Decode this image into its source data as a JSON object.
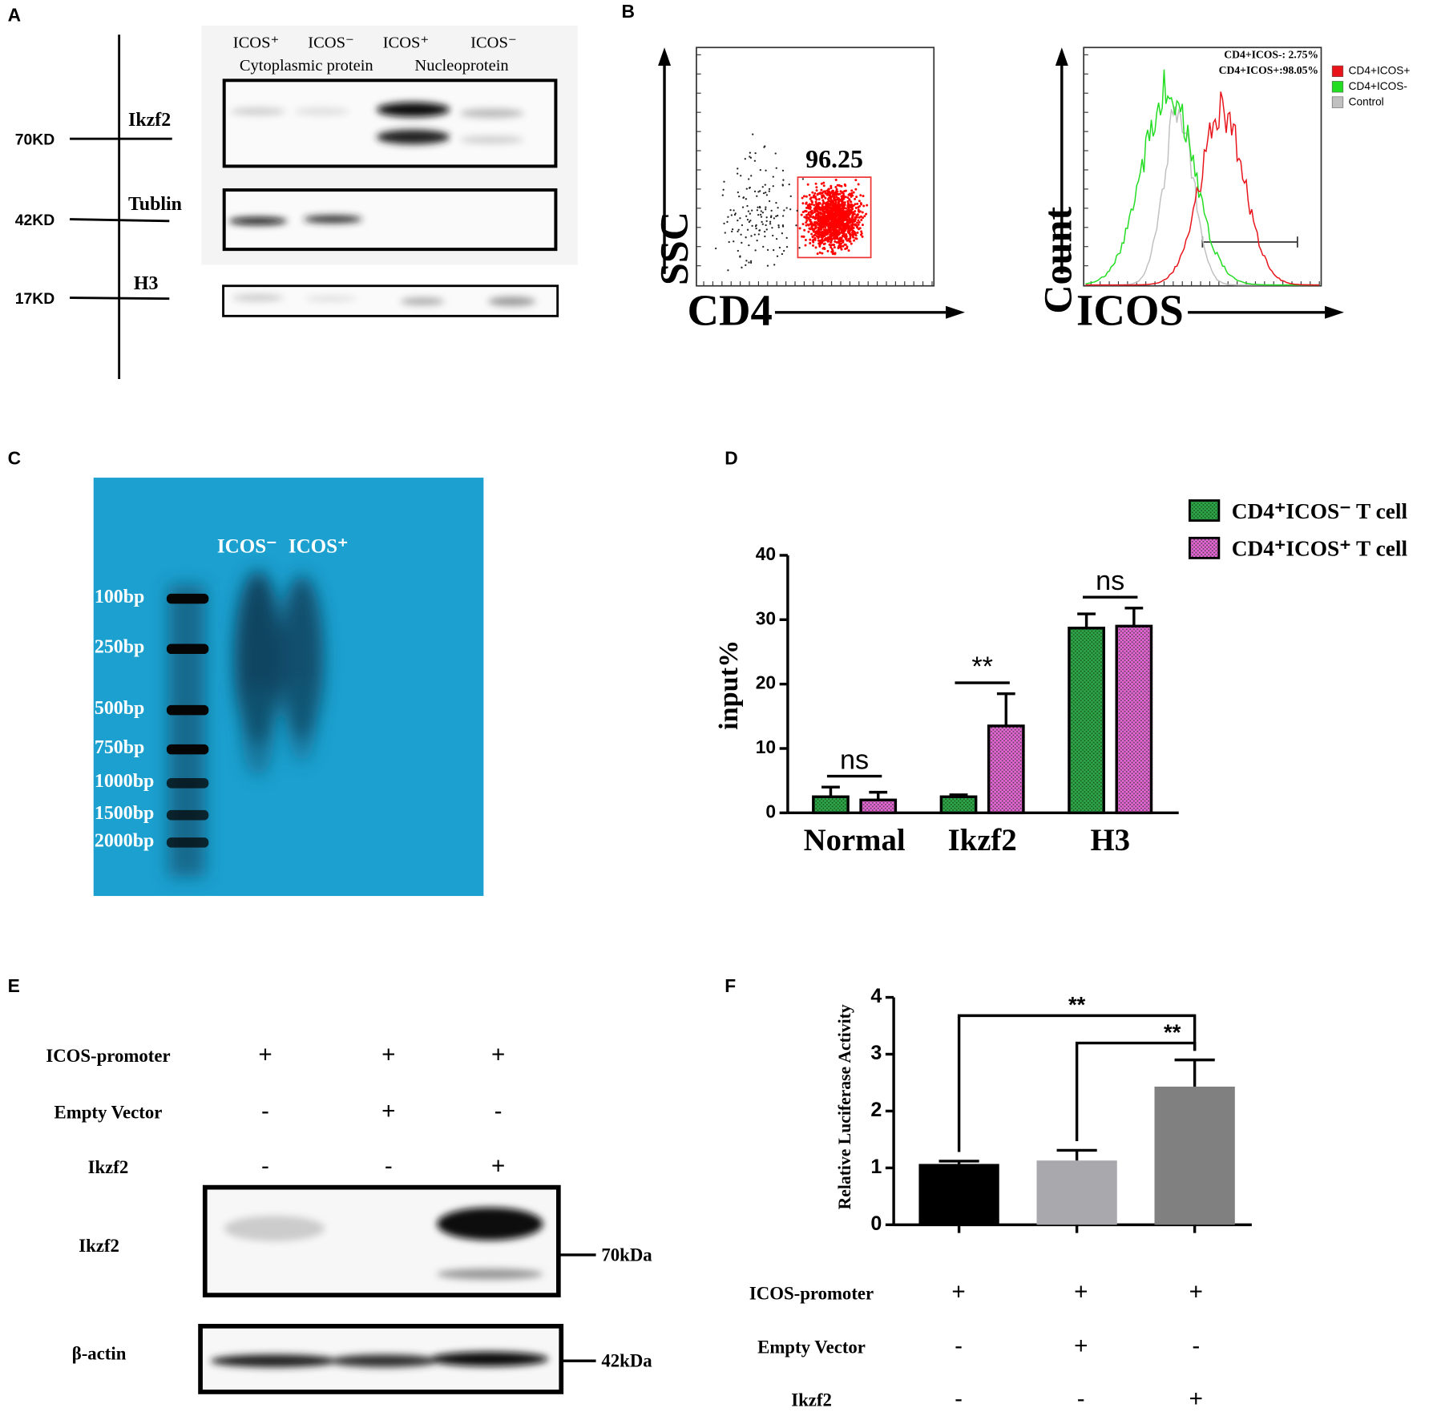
{
  "panel_letters": [
    "A",
    "B",
    "C",
    "D",
    "E",
    "F"
  ],
  "panel_a": {
    "lanes": [
      "ICOS⁺",
      "ICOS⁻",
      "ICOS⁺",
      "ICOS⁻"
    ],
    "fractions": [
      "Cytoplasmic protein",
      "Nucleoprotein"
    ],
    "markers": [
      "70KD",
      "42KD",
      "17KD"
    ],
    "proteins": [
      "Ikzf2",
      "Tublin",
      "H3"
    ]
  },
  "panel_b": {
    "scatter": {
      "gate_value": "96.25",
      "y_label": "SSC",
      "x_label": "CD4"
    },
    "histogram": {
      "y_label": "Count",
      "x_label": "ICOS",
      "stats": [
        "CD4+ICOS-: 2.75%",
        "CD4+ICOS+:98.05%"
      ],
      "legend": [
        {
          "name": "CD4+ICOS+",
          "color": "#e8141a"
        },
        {
          "name": "CD4+ICOS-",
          "color": "#22dd22"
        },
        {
          "name": "Control",
          "color": "#c0c0c0"
        }
      ]
    }
  },
  "panel_c": {
    "lanes": [
      "ICOS⁻",
      "ICOS⁺"
    ],
    "ladder": [
      "100bp",
      "250bp",
      "500bp",
      "750bp",
      "1000bp",
      "1500bp",
      "2000bp"
    ]
  },
  "panel_e": {
    "conditions": [
      {
        "label": "ICOS-promoter",
        "marks": [
          "+",
          "+",
          "+"
        ]
      },
      {
        "label": "Empty  Vector",
        "marks": [
          "-",
          "+",
          "-"
        ]
      },
      {
        "label": "Ikzf2",
        "marks": [
          "-",
          "-",
          "+"
        ]
      }
    ],
    "blots": [
      "Ikzf2",
      "β-actin"
    ],
    "sizes": [
      "70kDa",
      "42kDa"
    ]
  },
  "chart_data": [
    {
      "type": "bar",
      "y_label": "input%",
      "categories": [
        "Normal",
        "Ikzf2",
        "H3"
      ],
      "series": [
        {
          "name": "CD4⁺ICOS⁻ T cell",
          "color": "#2fa84a",
          "values": [
            2.5,
            2.5,
            28.7
          ],
          "errors": [
            1.5,
            0.3,
            2.2
          ]
        },
        {
          "name": "CD4⁺ICOS⁺ T cell",
          "color": "#e866d8",
          "values": [
            2.0,
            13.5,
            29.0
          ],
          "errors": [
            1.2,
            5.0,
            2.8
          ]
        }
      ],
      "significance": [
        "ns",
        "**",
        "ns"
      ],
      "ylim": [
        0,
        40
      ],
      "yticks": [
        0,
        10,
        20,
        30,
        40
      ]
    },
    {
      "type": "bar",
      "y_label": "Relative Luciferase Activity",
      "categories": [
        null,
        null,
        null
      ],
      "values": [
        1.07,
        1.13,
        2.43
      ],
      "errors": [
        0.05,
        0.18,
        0.47
      ],
      "colors": [
        "#000000",
        "#a9a9ad",
        "#808080"
      ],
      "significance": [
        "**",
        "**"
      ],
      "ylim": [
        0,
        4
      ],
      "yticks": [
        0,
        1,
        2,
        3,
        4
      ],
      "conditions": [
        {
          "label": "ICOS-promoter",
          "marks": [
            "+",
            "+",
            "+"
          ]
        },
        {
          "label": "Empty  Vector",
          "marks": [
            "-",
            "+",
            "-"
          ]
        },
        {
          "label": "Ikzf2",
          "marks": [
            "-",
            "-",
            "+"
          ]
        }
      ]
    }
  ]
}
